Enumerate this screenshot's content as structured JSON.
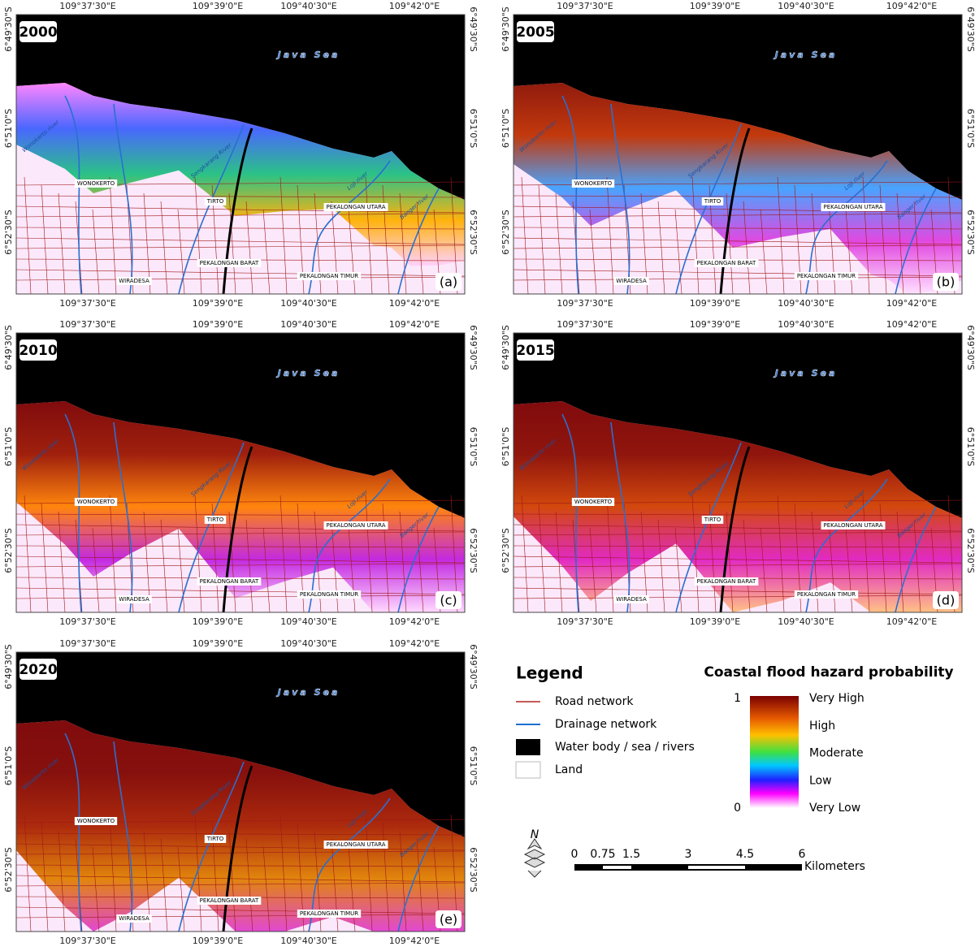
{
  "panels": [
    {
      "year": "2000",
      "letter": "(a)"
    },
    {
      "year": "2005",
      "letter": "(b)"
    },
    {
      "year": "2010",
      "letter": "(c)"
    },
    {
      "year": "2015",
      "letter": "(d)"
    },
    {
      "year": "2020",
      "letter": "(e)"
    }
  ],
  "longitudes": [
    "109°37'30\"E",
    "109°39'0\"E",
    "109°40'30\"E",
    "109°42'0\"E"
  ],
  "latitudes": [
    "6°49'30\"S",
    "6°51'0\"S",
    "6°52'30\"S"
  ],
  "places": {
    "sea": "Java Sea",
    "wonokerto_river": "Wonokerto river",
    "sengkarang_river": "Sengkarang River",
    "loji_river": "Loji river",
    "banger_river": "Banger river",
    "wonokerto": "WONOKERTO",
    "tirto": "TIRTO",
    "pekalongan_utara": "PEKALONGAN UTARA",
    "pekalongan_barat": "PEKALONGAN BARAT",
    "pekalongan_timur": "PEKALONGAN TIMUR",
    "wiradesa": "WIRADESA"
  },
  "legend": {
    "title": "Legend",
    "items": [
      "Road network",
      "Drainage network",
      "Water body / sea / rivers",
      "Land"
    ]
  },
  "colorbar": {
    "title": "Coastal flood hazard probability",
    "max": 1,
    "min": 0,
    "classes": [
      "Very High",
      "High",
      "Moderate",
      "Low",
      "Very Low"
    ]
  },
  "north": "N",
  "scale": {
    "ticks": [
      0,
      0.75,
      1.5,
      3,
      4.5,
      6
    ],
    "unit": "Kilometers"
  }
}
